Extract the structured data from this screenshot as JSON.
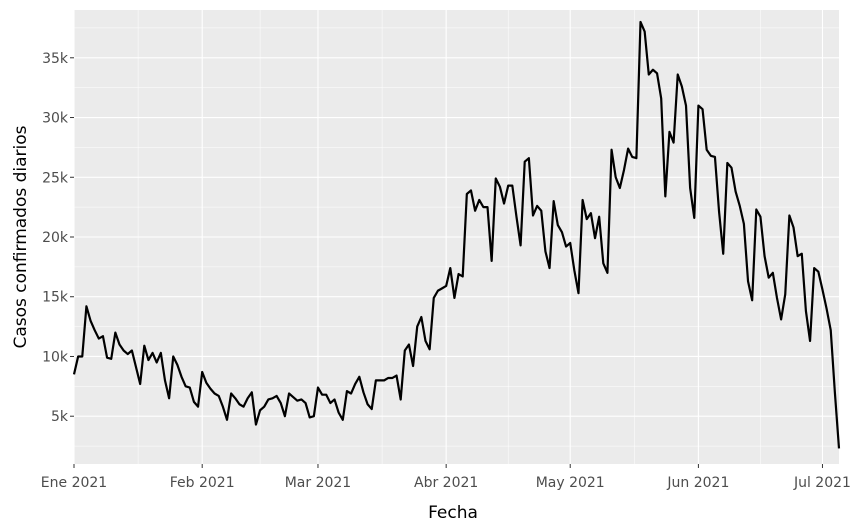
{
  "chart_data": {
    "type": "line",
    "title": "",
    "xlabel": "Fecha",
    "ylabel": "Casos confirmados diarios",
    "x_axis": {
      "type": "date",
      "range": [
        "2021-01-01",
        "2021-07-05"
      ],
      "ticks": [
        {
          "date": "2021-01-01",
          "label": "Ene 2021"
        },
        {
          "date": "2021-02-01",
          "label": "Feb 2021"
        },
        {
          "date": "2021-03-01",
          "label": "Mar 2021"
        },
        {
          "date": "2021-04-01",
          "label": "Abr 2021"
        },
        {
          "date": "2021-05-01",
          "label": "May 2021"
        },
        {
          "date": "2021-06-01",
          "label": "Jun 2021"
        },
        {
          "date": "2021-07-01",
          "label": "Jul 2021"
        }
      ]
    },
    "y_axis": {
      "range": [
        1000,
        39000
      ],
      "ticks": [
        {
          "value": 5000,
          "label": "5k"
        },
        {
          "value": 10000,
          "label": "10k"
        },
        {
          "value": 15000,
          "label": "15k"
        },
        {
          "value": 20000,
          "label": "20k"
        },
        {
          "value": 25000,
          "label": "25k"
        },
        {
          "value": 30000,
          "label": "30k"
        },
        {
          "value": 35000,
          "label": "35k"
        }
      ]
    },
    "grid": true,
    "legend": "none",
    "colors": {
      "panel": "#ebebeb",
      "grid_major": "#ffffff",
      "line": "#000000",
      "tick_text": "#4d4d4d"
    },
    "series": [
      {
        "start_date": "2021-01-01",
        "interval": "daily",
        "values": [
          8500,
          10000,
          10000,
          14200,
          13000,
          12200,
          11500,
          11700,
          9900,
          9800,
          12000,
          11000,
          10500,
          10200,
          10500,
          9100,
          7700,
          10900,
          9700,
          10300,
          9500,
          10300,
          8000,
          6500,
          10000,
          9300,
          8300,
          7500,
          7400,
          6200,
          5800,
          8700,
          7800,
          7300,
          6900,
          6700,
          5800,
          4700,
          6900,
          6500,
          6000,
          5800,
          6500,
          7000,
          4300,
          5500,
          5800,
          6400,
          6500,
          6700,
          6100,
          5000,
          6900,
          6600,
          6300,
          6400,
          6100,
          4900,
          5000,
          7400,
          6800,
          6800,
          6100,
          6400,
          5300,
          4700,
          7100,
          6900,
          7700,
          8300,
          7000,
          6000,
          5600,
          8000,
          8000,
          8000,
          8200,
          8200,
          8400,
          6400,
          10500,
          11000,
          9200,
          12500,
          13300,
          11300,
          10600,
          14900,
          15500,
          15700,
          15900,
          17400,
          14900,
          16900,
          16700,
          23600,
          23900,
          22200,
          23100,
          22500,
          22500,
          18000,
          24900,
          24200,
          22800,
          24300,
          24300,
          21700,
          19300,
          26300,
          26600,
          21800,
          22600,
          22200,
          18800,
          17400,
          23000,
          21000,
          20400,
          19200,
          19500,
          17200,
          15300,
          23100,
          21500,
          22000,
          19900,
          21700,
          17800,
          17000,
          27300,
          25000,
          24100,
          25600,
          27400,
          26700,
          26600,
          38000,
          37200,
          33600,
          34000,
          33700,
          31600,
          23400,
          28800,
          27900,
          33600,
          32600,
          31000,
          24100,
          21600,
          31000,
          30700,
          27300,
          26800,
          26700,
          22100,
          18600,
          26200,
          25800,
          23800,
          22600,
          21100,
          16300,
          14700,
          22300,
          21700,
          18400,
          16600,
          17000,
          14900,
          13100,
          15200,
          21800,
          20800,
          18400,
          18600,
          13800,
          11300,
          17400,
          17100,
          15600,
          14000,
          12200,
          7000,
          2300
        ]
      }
    ]
  }
}
